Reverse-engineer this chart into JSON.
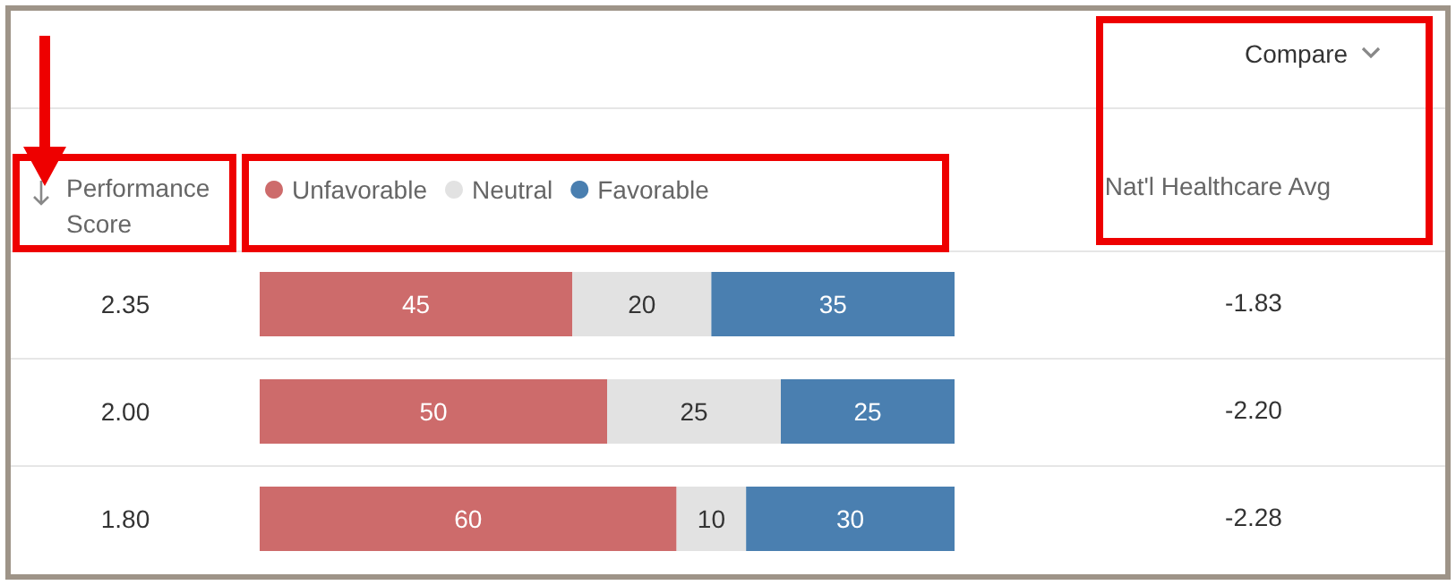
{
  "chart_data": {
    "type": "bar",
    "orientation": "horizontal",
    "stacked": true,
    "ylabel": "Performance Score",
    "categories": [
      "2.35",
      "2.00",
      "1.80"
    ],
    "series": [
      {
        "name": "Unfavorable",
        "color": "#cd6b6b",
        "values": [
          45,
          50,
          60
        ]
      },
      {
        "name": "Neutral",
        "color": "#e2e2e2",
        "values": [
          20,
          25,
          10
        ]
      },
      {
        "name": "Favorable",
        "color": "#4a7fb0",
        "values": [
          35,
          25,
          30
        ]
      }
    ],
    "xlim": [
      0,
      100
    ],
    "tick_labels": "y",
    "data_labels": true,
    "legend": "top left",
    "annotations": [
      "Compare",
      "Nat'l Healthcare Avg",
      "-1.83",
      "-2.20",
      "-2.28"
    ]
  }
}
